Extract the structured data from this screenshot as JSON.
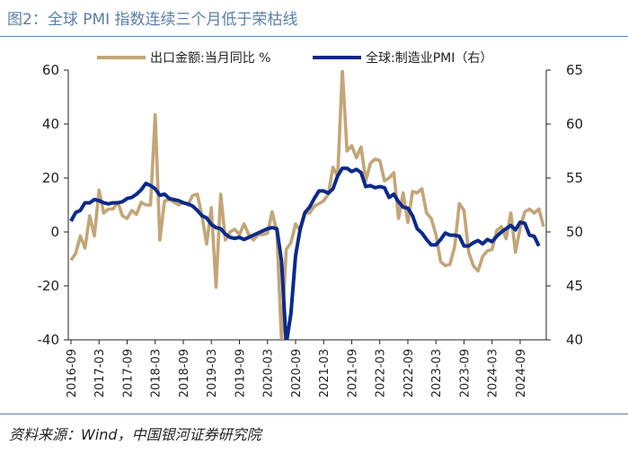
{
  "figure": {
    "title": "图2：全球 PMI 指数连续三个月低于荣枯线",
    "source": "资料来源：Wind，中国银河证券研究院"
  },
  "colors": {
    "export": "#c3a577",
    "pmi": "#0c2a8a",
    "header": "#5b7fa8",
    "axis": "#222222"
  },
  "chart_data": {
    "type": "line",
    "title": "全球 PMI 指数连续三个月低于荣枯线",
    "x_tick_labels": [
      "2016-09",
      "2017-03",
      "2017-09",
      "2018-03",
      "2018-09",
      "2019-03",
      "2019-09",
      "2020-03",
      "2020-09",
      "2021-03",
      "2021-09",
      "2022-03",
      "2022-09",
      "2023-03",
      "2023-09",
      "2024-03",
      "2024-09"
    ],
    "y_left": {
      "label": "出口金额:当月同比 %",
      "range": [
        -40,
        60
      ],
      "ticks": [
        "-40",
        "-20",
        "0",
        "20",
        "40",
        "60"
      ]
    },
    "y_right": {
      "label": "全球:制造业PMI",
      "range": [
        40,
        65
      ],
      "ticks": [
        "40",
        "45",
        "50",
        "55",
        "60",
        "65"
      ]
    },
    "series": [
      {
        "name": "出口金额:当月同比 %",
        "axis": "left",
        "values": [
          -10.5,
          -8,
          -1.5,
          -6,
          6,
          -1.5,
          15.5,
          7,
          8.5,
          8.5,
          11,
          6,
          5,
          8,
          6.5,
          11,
          10,
          10,
          43.5,
          -3,
          11.5,
          12,
          11,
          10,
          11,
          10,
          13.5,
          14,
          6,
          -4.5,
          9,
          -20.5,
          14,
          -3,
          0,
          1,
          -1,
          3,
          -1,
          -3,
          -1,
          -1,
          -0.5,
          7.5,
          0,
          -40.5,
          -6.5,
          -4,
          3,
          0.5,
          7,
          7,
          9.5,
          10.5,
          11.5,
          14,
          24,
          20.5,
          60,
          30,
          32,
          27.5,
          31.5,
          19,
          25.5,
          27,
          26.5,
          19,
          20,
          22,
          5,
          14.5,
          3.5,
          15,
          14.5,
          16,
          7,
          5,
          -1,
          -11,
          -12.5,
          -12,
          -5.5,
          10.5,
          8,
          -7.5,
          -12.5,
          -14.5,
          -9,
          -7,
          -6.5,
          0.5,
          2,
          -2.5,
          7,
          -7.5,
          1.5,
          7.5,
          8.5,
          7,
          8.5,
          2
        ],
        "note": "2021-03 value 60 is where the line leaves the top of the plot frame"
      },
      {
        "name": "全球:制造业PMI（右）",
        "axis": "right",
        "values": [
          51,
          51.8,
          52,
          52.7,
          52.7,
          53,
          52.9,
          52.7,
          52.6,
          52.7,
          52.7,
          52.8,
          53.1,
          53.2,
          53.5,
          53.9,
          54.5,
          54.3,
          54,
          53.4,
          53.5,
          53.1,
          53,
          52.9,
          52.7,
          52.6,
          52.4,
          52,
          51.5,
          51.3,
          50.7,
          50.4,
          50.3,
          49.8,
          49.5,
          49.4,
          49.5,
          49.3,
          49.5,
          49.7,
          49.9,
          50.1,
          50.3,
          50.4,
          50.3,
          47.3,
          39.6,
          42.4,
          47.8,
          50.3,
          51.8,
          52.3,
          53.1,
          53.8,
          53.8,
          53.6,
          54,
          55.2,
          55.9,
          55.9,
          55.6,
          55.8,
          55.5,
          54.2,
          54.3,
          54.1,
          54.2,
          54.1,
          53.2,
          53.5,
          52.8,
          52.3,
          52.2,
          51.5,
          50.3,
          49.9,
          49.3,
          48.8,
          48.8,
          49.3,
          49.9,
          49.7,
          49.7,
          49.6,
          48.7,
          48.7,
          49,
          49.2,
          48.9,
          49.3,
          49.1,
          49.6,
          50,
          50.3,
          50.6,
          50.2,
          50.9,
          50.8,
          49.7,
          49.6,
          48.7
        ]
      }
    ]
  }
}
